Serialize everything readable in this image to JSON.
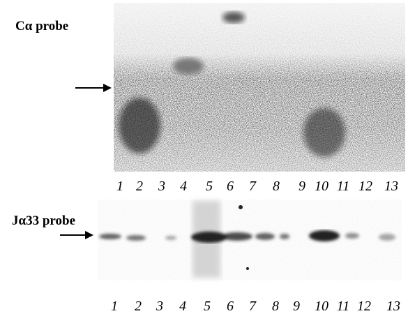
{
  "panels": [
    {
      "label": "Cα probe",
      "lanes": [
        "1",
        "2",
        "3",
        "4",
        "5",
        "6",
        "7",
        "8",
        "9",
        "10",
        "11",
        "12",
        "13"
      ]
    },
    {
      "label": "Jα33 probe",
      "lanes": [
        "1",
        "2",
        "3",
        "4",
        "5",
        "6",
        "7",
        "8",
        "9",
        "10",
        "11",
        "12",
        "13"
      ]
    }
  ]
}
